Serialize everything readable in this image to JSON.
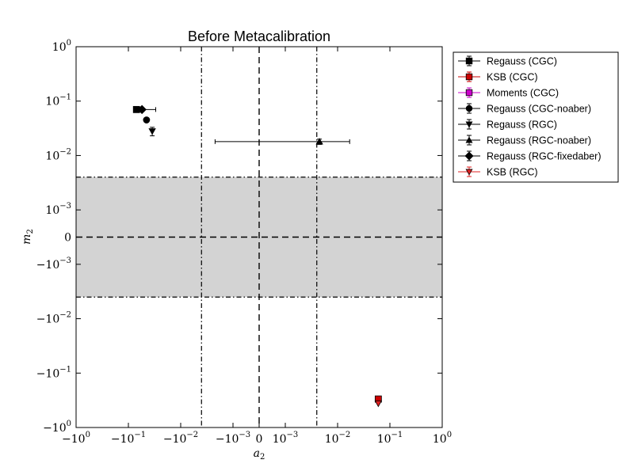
{
  "chart_data": {
    "type": "scatter",
    "title": "Before Metacalibration",
    "xlabel": "a",
    "xlabel_sub": "2",
    "ylabel": "m",
    "ylabel_sub": "2",
    "xscale": "symlog",
    "yscale": "symlog",
    "linthresh": 0.001,
    "xlim": [
      -1,
      1
    ],
    "ylim": [
      -1,
      1
    ],
    "x_ticks": [
      {
        "v": -1,
        "base": "−10",
        "exp": "0"
      },
      {
        "v": -0.1,
        "base": "−10",
        "exp": "−1"
      },
      {
        "v": -0.01,
        "base": "−10",
        "exp": "−2"
      },
      {
        "v": -0.001,
        "base": "−10",
        "exp": "−3"
      },
      {
        "v": 0,
        "base": "0",
        "exp": ""
      },
      {
        "v": 0.001,
        "base": "10",
        "exp": "−3"
      },
      {
        "v": 0.01,
        "base": "10",
        "exp": "−2"
      },
      {
        "v": 0.1,
        "base": "10",
        "exp": "−1"
      },
      {
        "v": 1,
        "base": "10",
        "exp": "0"
      }
    ],
    "y_ticks": [
      {
        "v": 1,
        "base": "10",
        "exp": "0"
      },
      {
        "v": 0.1,
        "base": "10",
        "exp": "−1"
      },
      {
        "v": 0.01,
        "base": "10",
        "exp": "−2"
      },
      {
        "v": 0.001,
        "base": "10",
        "exp": "−3"
      },
      {
        "v": 0,
        "base": "0",
        "exp": ""
      },
      {
        "v": -0.001,
        "base": "−10",
        "exp": "−3"
      },
      {
        "v": -0.01,
        "base": "−10",
        "exp": "−2"
      },
      {
        "v": -0.1,
        "base": "−10",
        "exp": "−1"
      },
      {
        "v": -1,
        "base": "−10",
        "exp": "0"
      }
    ],
    "shaded_band_y": [
      -0.004,
      0.004
    ],
    "vlines_dashdot": [
      -0.004,
      0.004
    ],
    "zero_lines": "dashed",
    "grid": false,
    "legend_position": "outside right, top",
    "series": [
      {
        "name": "Regauss (CGC)",
        "marker": "square",
        "color": "#000000",
        "x": -0.07,
        "y": 0.07,
        "xerr": [
          0,
          0
        ],
        "yerr": [
          0,
          0
        ]
      },
      {
        "name": "KSB (CGC)",
        "marker": "square",
        "color": "#cc0000",
        "x": 0.06,
        "y": -0.3,
        "xerr": [
          0,
          0
        ],
        "yerr": [
          0,
          0
        ]
      },
      {
        "name": "Moments (CGC)",
        "marker": "square",
        "color": "#cc00cc",
        "x": null,
        "y": null,
        "xerr": [
          0,
          0
        ],
        "yerr": [
          0,
          0
        ]
      },
      {
        "name": "Regauss (CGC-noaber)",
        "marker": "circle",
        "color": "#000000",
        "x": -0.045,
        "y": 0.045,
        "xerr": [
          0.003,
          0.003
        ],
        "yerr": [
          0,
          0
        ]
      },
      {
        "name": "Regauss (RGC)",
        "marker": "triangle-down",
        "color": "#000000",
        "x": -0.035,
        "y": 0.028,
        "xerr": [
          0,
          0
        ],
        "yerr": [
          0.005,
          0.005
        ]
      },
      {
        "name": "Regauss (RGC-noaber)",
        "marker": "triangle-up",
        "color": "#000000",
        "x": 0.0045,
        "y": 0.018,
        "xerr": [
          0.0067,
          0.0125
        ],
        "yerr": [
          0.002,
          0.002
        ]
      },
      {
        "name": "Regauss (RGC-fixedaber)",
        "marker": "diamond",
        "color": "#000000",
        "x": -0.055,
        "y": 0.07,
        "xerr": [
          0,
          0.025
        ],
        "yerr": [
          0,
          0
        ]
      },
      {
        "name": "KSB (RGC)",
        "marker": "triangle-down",
        "color": "#e02020",
        "x": 0.06,
        "y": -0.36,
        "xerr": [
          0,
          0
        ],
        "yerr": [
          0,
          0
        ]
      }
    ]
  }
}
